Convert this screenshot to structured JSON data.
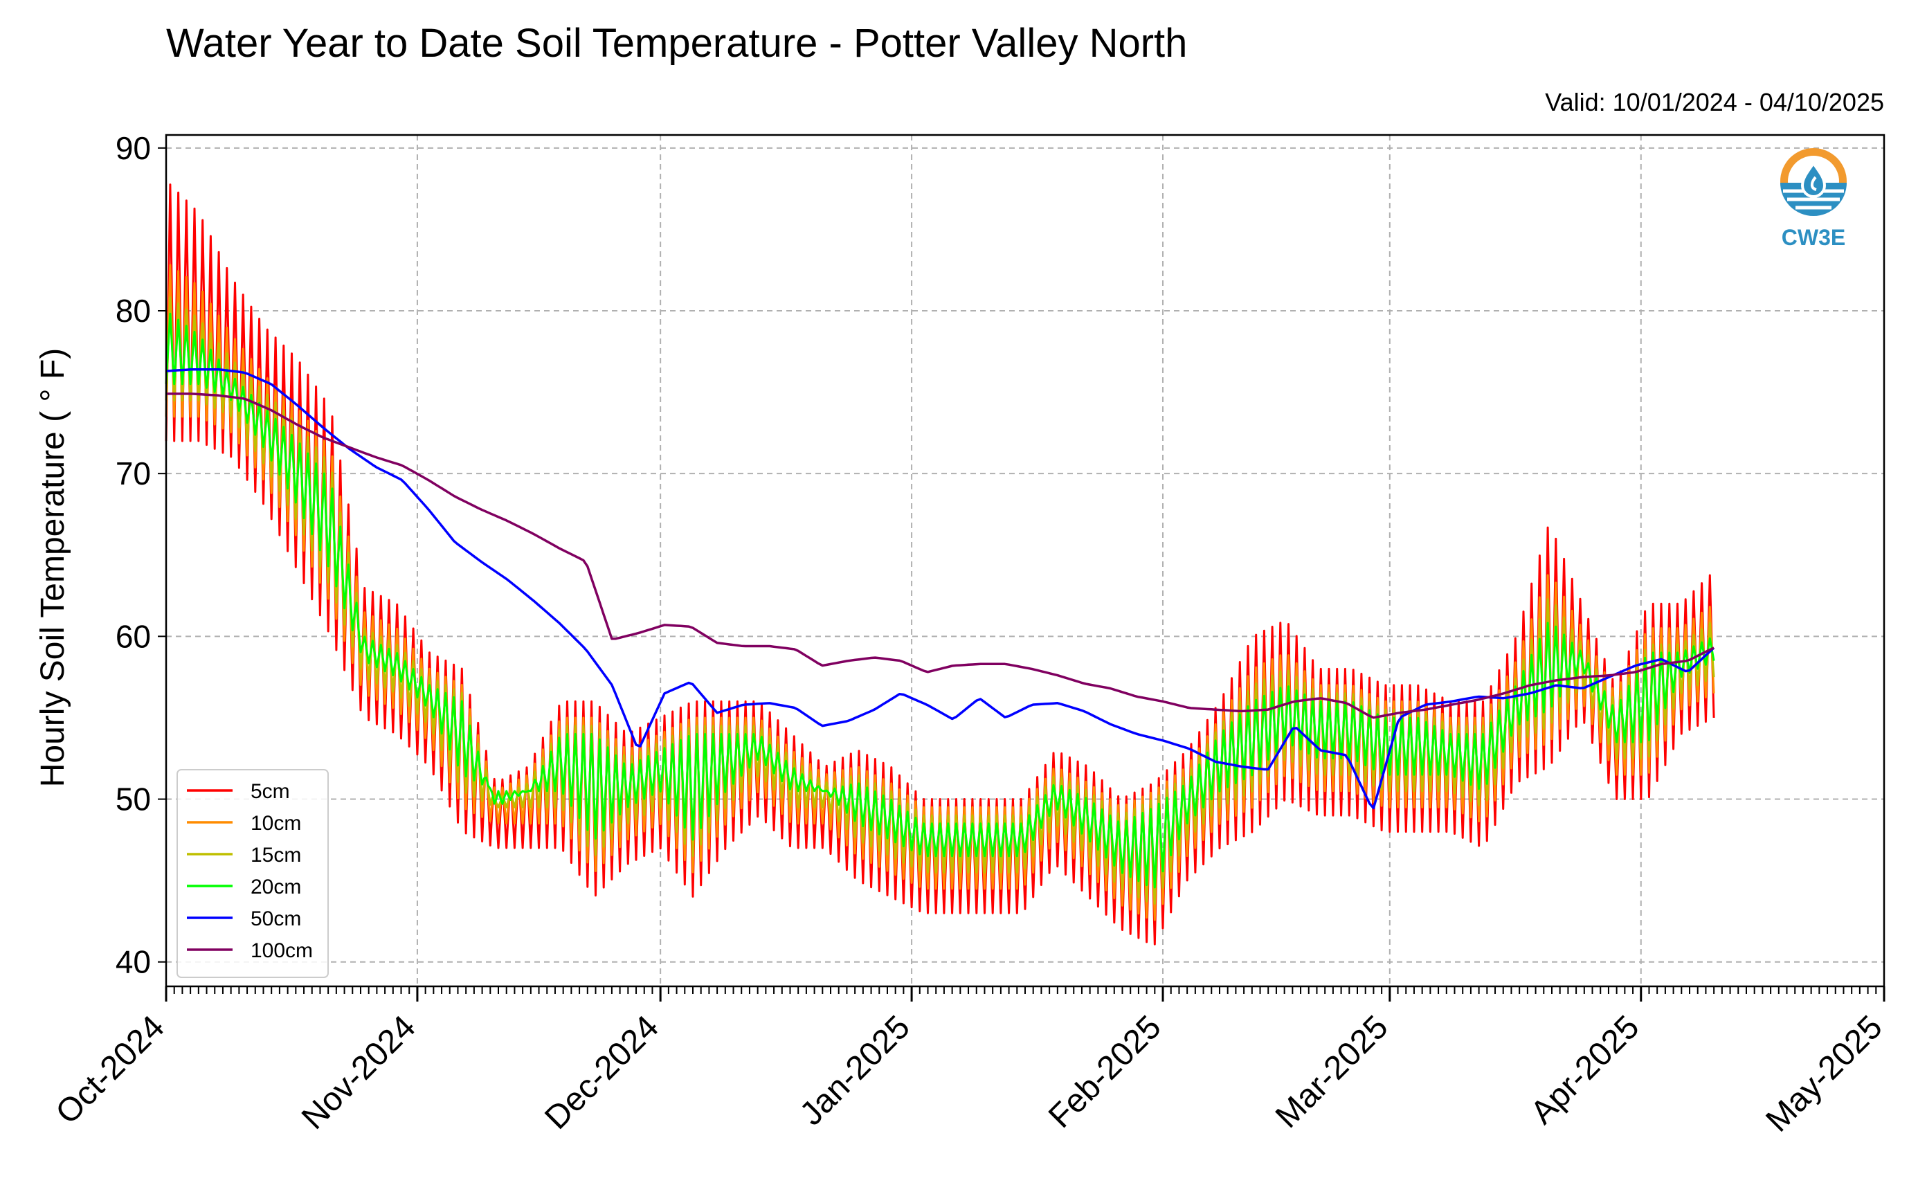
{
  "chart_data": {
    "type": "line",
    "title": "Water Year to Date Soil Temperature - Potter Valley North",
    "subtitle": "Valid: 10/01/2024 - 04/10/2025",
    "xlabel": "",
    "ylabel": "Hourly Soil Temperature ( ° F)",
    "xlim": [
      "2024-10-01",
      "2025-05-01"
    ],
    "ylim": [
      38.5,
      90.8
    ],
    "yticks": [
      40,
      50,
      60,
      70,
      80,
      90
    ],
    "xticks": [
      {
        "date": "2024-10-01",
        "label": "Oct-2024"
      },
      {
        "date": "2024-11-01",
        "label": "Nov-2024"
      },
      {
        "date": "2024-12-01",
        "label": "Dec-2024"
      },
      {
        "date": "2025-01-01",
        "label": "Jan-2025"
      },
      {
        "date": "2025-02-01",
        "label": "Feb-2025"
      },
      {
        "date": "2025-03-01",
        "label": "Mar-2025"
      },
      {
        "date": "2025-04-01",
        "label": "Apr-2025"
      },
      {
        "date": "2025-05-01",
        "label": "May-2025"
      }
    ],
    "grid": true,
    "legend_position": "lower-left",
    "series": [
      {
        "name": "5cm",
        "color": "#ff0000",
        "kind": "diurnal",
        "min_values": [
          72,
          72,
          71,
          68,
          64,
          60,
          55,
          54,
          52,
          48,
          47,
          47,
          47,
          44,
          46,
          47,
          44,
          47,
          49,
          47,
          47,
          45,
          44,
          43,
          43,
          43,
          43,
          46,
          44,
          42,
          41,
          45,
          47,
          48,
          50,
          49,
          49,
          48,
          48,
          48,
          47,
          51,
          52,
          55,
          50,
          50,
          54,
          55
        ],
        "max_values": [
          88,
          86,
          82,
          79,
          77,
          74,
          63,
          62,
          59,
          58,
          51,
          52,
          56,
          56,
          54,
          55,
          56,
          56,
          56,
          54,
          52,
          53,
          52,
          50,
          50,
          50,
          50,
          53,
          52,
          50,
          51,
          53,
          56,
          60,
          61,
          58,
          58,
          57,
          57,
          56,
          56,
          60,
          67,
          62,
          57,
          62,
          62,
          64
        ]
      },
      {
        "name": "10cm",
        "color": "#ff8c00",
        "kind": "diurnal",
        "min_values": [
          73.5,
          73.5,
          72.5,
          69.5,
          66,
          62,
          56.5,
          55.5,
          53.5,
          49.5,
          48.5,
          48.5,
          48.5,
          45.5,
          47.5,
          48.5,
          45.5,
          48.5,
          50.5,
          48.5,
          48.5,
          46.5,
          45.5,
          44.5,
          44.5,
          44.5,
          44.5,
          47.5,
          45.5,
          43.5,
          42.5,
          46.5,
          48.5,
          49.5,
          51.5,
          50.5,
          50.5,
          49.5,
          49.5,
          49.5,
          48.5,
          52.5,
          53.5,
          56,
          51.5,
          51.5,
          55.5,
          56.5
        ],
        "max_values": [
          83,
          81.5,
          78.5,
          76,
          74,
          71.5,
          61.5,
          60.5,
          58,
          57,
          50.5,
          51.5,
          55,
          55,
          53,
          54,
          55,
          55,
          55,
          53,
          51.5,
          52,
          51,
          49.5,
          49.5,
          49.5,
          49.5,
          52,
          51,
          49.5,
          50.5,
          52,
          55,
          58,
          59,
          57,
          57,
          56,
          56,
          55,
          55,
          58.5,
          64,
          60.5,
          56.5,
          60.5,
          60.5,
          62
        ]
      },
      {
        "name": "15cm",
        "color": "#bfbf00",
        "kind": "diurnal",
        "min_values": [
          74.5,
          74.5,
          73.5,
          70.5,
          67,
          63,
          57.5,
          56.5,
          54.5,
          50.5,
          49.5,
          49.5,
          49.5,
          46.5,
          48.5,
          49.5,
          46.5,
          49.5,
          51.5,
          49.5,
          49.5,
          47.5,
          46.5,
          45.5,
          45.5,
          45.5,
          45.5,
          48.5,
          46.5,
          44.5,
          43.5,
          47.5,
          49.5,
          50.5,
          52.5,
          51.5,
          51.5,
          50.5,
          50.5,
          50.5,
          49.5,
          53.5,
          54.5,
          57,
          52.5,
          52.5,
          56.5,
          57.5
        ],
        "max_values": [
          81,
          79.5,
          77,
          75,
          73,
          70.5,
          60.5,
          59.5,
          57.5,
          56.5,
          50,
          51,
          54.5,
          54.5,
          52.5,
          53.5,
          54.5,
          54.5,
          54.5,
          52.5,
          51,
          51.5,
          50.5,
          49,
          49,
          49,
          49,
          51.5,
          50.5,
          49,
          50,
          51.5,
          54.5,
          57,
          58,
          56.5,
          56.5,
          55.5,
          55.5,
          54.5,
          54.5,
          57.5,
          62.5,
          59.5,
          56,
          59.5,
          59.5,
          61
        ]
      },
      {
        "name": "20cm",
        "color": "#00ff00",
        "kind": "diurnal",
        "min_values": [
          75.5,
          75.5,
          74.5,
          71.5,
          68,
          64,
          58.5,
          57.5,
          55.5,
          51.5,
          50.5,
          50.5,
          50.5,
          47.5,
          49.5,
          50.5,
          47.5,
          50.5,
          52.5,
          50.5,
          50.5,
          48.5,
          47.5,
          46.5,
          46.5,
          46.5,
          46.5,
          49.5,
          47.5,
          45.5,
          44.5,
          48.5,
          50.5,
          51.5,
          53.5,
          52.5,
          52.5,
          51.5,
          51.5,
          51.5,
          50.5,
          54.5,
          55.5,
          58,
          53.5,
          53.5,
          57.5,
          58.5
        ],
        "max_values": [
          80,
          78.5,
          76,
          74,
          72,
          69.5,
          60,
          59,
          57,
          56,
          49.5,
          50.5,
          54,
          54,
          52,
          53,
          54,
          54,
          54,
          52,
          50.5,
          51,
          50,
          48.5,
          48.5,
          48.5,
          48.5,
          51,
          50,
          48.5,
          49.5,
          51,
          54,
          56,
          57,
          56,
          56,
          55,
          55,
          54,
          54,
          57,
          61,
          59,
          55.5,
          59,
          59,
          60
        ]
      },
      {
        "name": "50cm",
        "color": "#0000ff",
        "kind": "smooth",
        "values": [
          76.3,
          76.4,
          76.4,
          76.2,
          75.5,
          74.2,
          72.8,
          71.5,
          70.4,
          69.6,
          67.8,
          65.8,
          64.6,
          63.5,
          62.2,
          60.8,
          59.2,
          57.0,
          53.0,
          56.5,
          57.2,
          55.3,
          55.8,
          55.9,
          55.6,
          54.5,
          54.8,
          55.5,
          56.5,
          55.8,
          54.9,
          56.2,
          55.0,
          55.8,
          55.9,
          55.4,
          54.6,
          54.0,
          53.6,
          53.1,
          52.3,
          52.0,
          51.8,
          54.5,
          53.0,
          52.7,
          49.3,
          55.0,
          55.8,
          56.0,
          56.3,
          56.2,
          56.5,
          57.0,
          56.8,
          57.5,
          58.2,
          58.6,
          57.8,
          59.3
        ]
      },
      {
        "name": "100cm",
        "color": "#800060",
        "kind": "smooth",
        "values": [
          74.9,
          74.9,
          74.8,
          74.6,
          73.9,
          73.0,
          72.2,
          71.6,
          71.0,
          70.5,
          69.6,
          68.6,
          67.8,
          67.1,
          66.3,
          65.4,
          64.6,
          59.8,
          60.2,
          60.7,
          60.6,
          59.6,
          59.4,
          59.4,
          59.2,
          58.2,
          58.5,
          58.7,
          58.5,
          57.8,
          58.2,
          58.3,
          58.3,
          58.0,
          57.6,
          57.1,
          56.8,
          56.3,
          56.0,
          55.6,
          55.5,
          55.4,
          55.5,
          56.0,
          56.2,
          55.9,
          55.0,
          55.3,
          55.5,
          55.8,
          56.1,
          56.5,
          57.0,
          57.3,
          57.5,
          57.6,
          57.8,
          58.3,
          58.5,
          59.3
        ]
      }
    ],
    "series_date_range": [
      "2024-10-01",
      "2025-04-10"
    ]
  },
  "logo": {
    "text": "CW3E",
    "icon": "cw3e-water-drop-logo-icon",
    "colors": {
      "orange": "#f29a2e",
      "blue": "#2c8fc2"
    }
  }
}
